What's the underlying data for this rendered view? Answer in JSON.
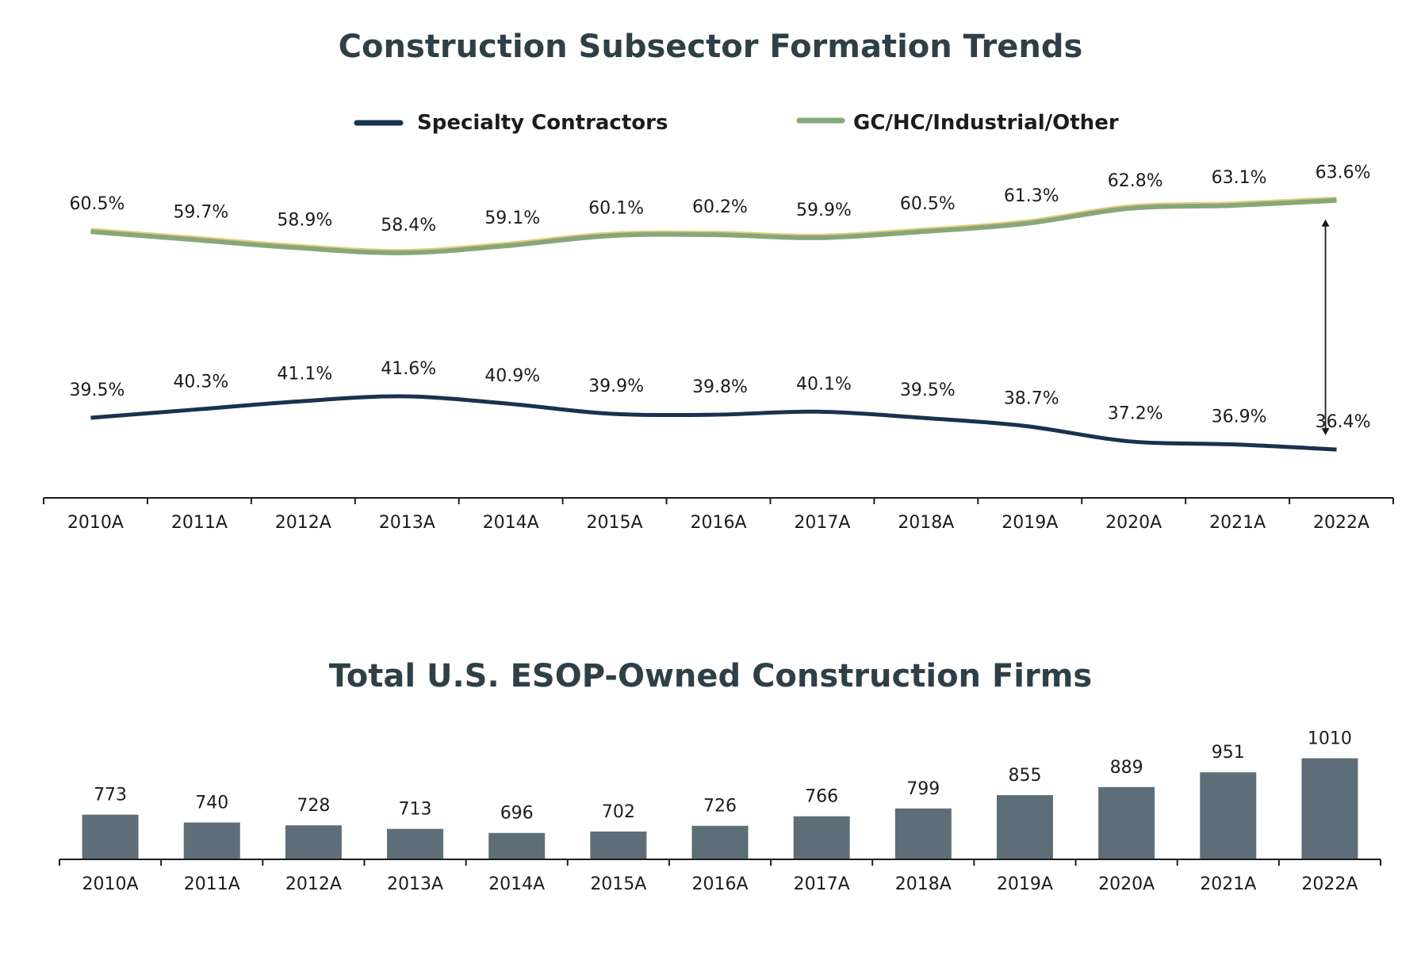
{
  "colors": {
    "title": "#2f3f48",
    "specialty": "#17334d",
    "gc": "#86a77a",
    "gc_highlight": "#e8cd7a",
    "bar": "#5d6e78",
    "text": "#1c1c1c",
    "axis": "#1c1c1c"
  },
  "chart_data": [
    {
      "type": "line",
      "title": "Construction Subsector Formation Trends",
      "categories": [
        "2010A",
        "2011A",
        "2012A",
        "2013A",
        "2014A",
        "2015A",
        "2016A",
        "2017A",
        "2018A",
        "2019A",
        "2020A",
        "2021A",
        "2022A"
      ],
      "series": [
        {
          "name": "Specialty Contractors",
          "values": [
            39.5,
            40.3,
            41.1,
            41.6,
            40.9,
            39.9,
            39.8,
            40.1,
            39.5,
            38.7,
            37.2,
            36.9,
            36.4
          ],
          "labels": [
            "39.5%",
            "40.3%",
            "41.1%",
            "41.6%",
            "40.9%",
            "39.9%",
            "39.8%",
            "40.1%",
            "39.5%",
            "38.7%",
            "37.2%",
            "36.9%",
            "36.4%"
          ]
        },
        {
          "name": "GC/HC/Industrial/Other",
          "values": [
            60.5,
            59.7,
            58.9,
            58.4,
            59.1,
            60.1,
            60.2,
            59.9,
            60.5,
            61.3,
            62.8,
            63.1,
            63.6
          ],
          "labels": [
            "60.5%",
            "59.7%",
            "58.9%",
            "58.4%",
            "59.1%",
            "60.1%",
            "60.2%",
            "59.9%",
            "60.5%",
            "61.3%",
            "62.8%",
            "63.1%",
            "63.6%"
          ]
        }
      ],
      "legend": "top",
      "grid": false,
      "annotation": "double-headed arrow between series at 2022A"
    },
    {
      "type": "bar",
      "title": "Total U.S. ESOP-Owned Construction Firms",
      "categories": [
        "2010A",
        "2011A",
        "2012A",
        "2013A",
        "2014A",
        "2015A",
        "2016A",
        "2017A",
        "2018A",
        "2019A",
        "2020A",
        "2021A",
        "2022A"
      ],
      "values": [
        773,
        740,
        728,
        713,
        696,
        702,
        726,
        766,
        799,
        855,
        889,
        951,
        1010
      ],
      "labels": [
        "773",
        "740",
        "728",
        "713",
        "696",
        "702",
        "726",
        "766",
        "799",
        "855",
        "889",
        "951",
        "1010"
      ],
      "grid": false
    }
  ]
}
